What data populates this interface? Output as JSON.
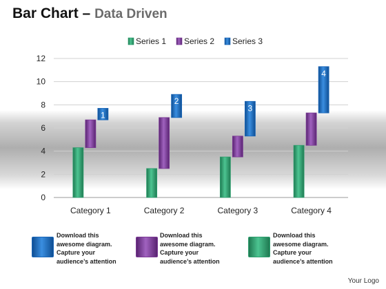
{
  "header": {
    "title": "Bar Chart",
    "dash": " – ",
    "subtitle": "Data Driven"
  },
  "chart_data": {
    "type": "bar",
    "categories": [
      "Category 1",
      "Category 2",
      "Category 3",
      "Category 4"
    ],
    "series": [
      {
        "name": "Series 1",
        "values": [
          4.3,
          2.5,
          3.5,
          4.5
        ],
        "color": "#2e9e6e"
      },
      {
        "name": "Series 2",
        "values": [
          2.4,
          4.4,
          1.8,
          2.8
        ],
        "color": "#7b3a95"
      },
      {
        "name": "Series 3",
        "values": [
          1.0,
          2.0,
          3.0,
          4.0
        ],
        "color": "#1a66b8"
      }
    ],
    "bar_labels": [
      "1",
      "2",
      "3",
      "4"
    ],
    "ylim": [
      0,
      12
    ],
    "yticks": [
      "0",
      "2",
      "4",
      "6",
      "8",
      "10",
      "12"
    ],
    "legend_position": "top",
    "grid": true
  },
  "notes": [
    {
      "text": "Download this awesome diagram. Capture your audience’s attention",
      "color": "#1a66b8"
    },
    {
      "text": "Download this awesome diagram. Capture your audience’s attention",
      "color": "#7b3a95"
    },
    {
      "text": "Download this awesome diagram. Capture your audience’s attention",
      "color": "#2e9e6e"
    }
  ],
  "footer": {
    "logo": "Your Logo"
  }
}
